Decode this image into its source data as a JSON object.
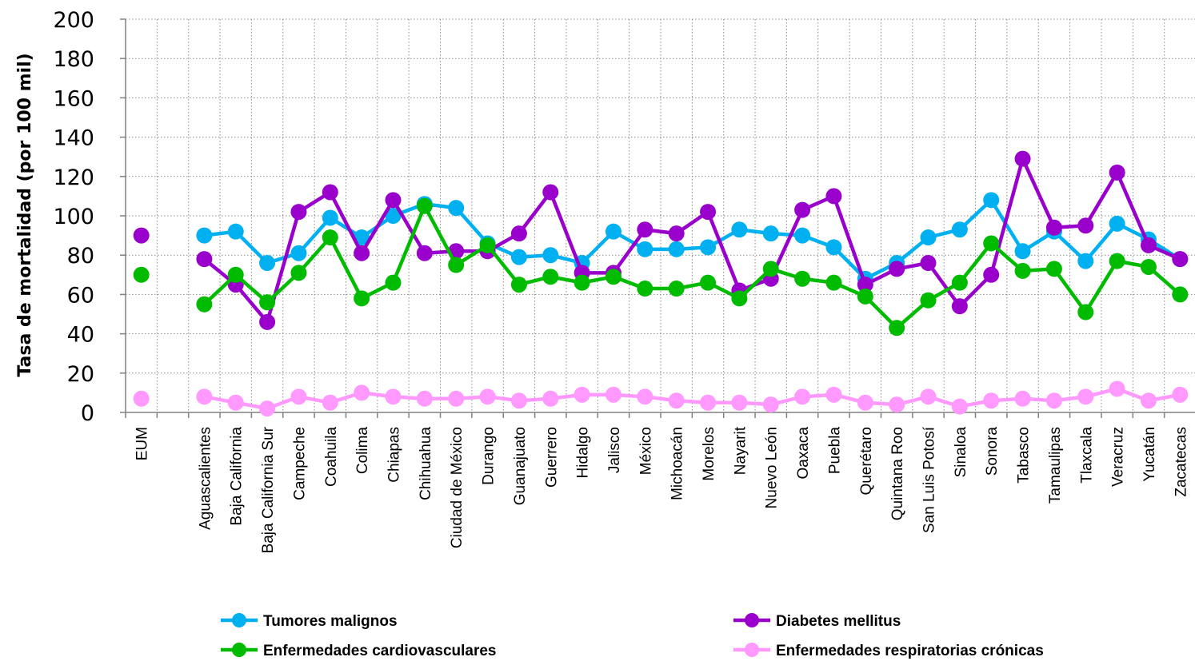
{
  "chart_data": {
    "type": "line",
    "ylabel": "Tasa de mortalidad (por 100 mil)",
    "xlabel": "",
    "ylim": [
      0,
      200
    ],
    "yticks": [
      0,
      20,
      40,
      60,
      80,
      100,
      120,
      140,
      160,
      180,
      200
    ],
    "grid": true,
    "legend_position": "bottom",
    "categories": [
      "EUM",
      "",
      "Aguascalientes",
      "Baja California",
      "Baja California Sur",
      "Campeche",
      "Coahuila",
      "Colima",
      "Chiapas",
      "Chihuahua",
      "Ciudad de México",
      "Durango",
      "Guanajuato",
      "Guerrero",
      "Hidalgo",
      "Jalisco",
      "México",
      "Michoacán",
      "Morelos",
      "Nayarit",
      "Nuevo León",
      "Oaxaca",
      "Puebla",
      "Querétaro",
      "Quintana Roo",
      "San Luis Potosí",
      "Sinaloa",
      "Sonora",
      "Tabasco",
      "Tamaulipas",
      "Tlaxcala",
      "Veracruz",
      "Yucatán",
      "Zacatecas"
    ],
    "series": [
      {
        "name": "Tumores malignos",
        "color": "#00b0f0",
        "values": [
          null,
          null,
          90,
          92,
          76,
          81,
          99,
          89,
          100,
          106,
          104,
          86,
          79,
          80,
          76,
          92,
          83,
          83,
          84,
          93,
          91,
          90,
          84,
          68,
          76,
          89,
          93,
          108,
          82,
          92,
          77,
          96,
          88,
          78
        ]
      },
      {
        "name": "Diabetes mellitus",
        "color": "#9900cc",
        "values": [
          90,
          null,
          78,
          65,
          46,
          102,
          112,
          81,
          108,
          81,
          82,
          82,
          91,
          112,
          71,
          71,
          93,
          91,
          102,
          62,
          68,
          103,
          110,
          65,
          73,
          76,
          54,
          70,
          129,
          94,
          95,
          122,
          85,
          78
        ]
      },
      {
        "name": "Enfermedades cardiovasculares",
        "color": "#00bb00",
        "values": [
          70,
          null,
          55,
          70,
          56,
          71,
          89,
          58,
          66,
          105,
          75,
          85,
          65,
          69,
          66,
          69,
          63,
          63,
          66,
          58,
          73,
          68,
          66,
          59,
          43,
          57,
          66,
          86,
          72,
          73,
          51,
          77,
          74,
          60
        ]
      },
      {
        "name": "Enfermedades respiratorias crónicas",
        "color": "#ff99ff",
        "values": [
          7,
          null,
          8,
          5,
          2,
          8,
          5,
          10,
          8,
          7,
          7,
          8,
          6,
          7,
          9,
          9,
          8,
          6,
          5,
          5,
          4,
          8,
          9,
          5,
          4,
          8,
          3,
          6,
          7,
          6,
          8,
          12,
          6,
          9
        ]
      }
    ]
  }
}
